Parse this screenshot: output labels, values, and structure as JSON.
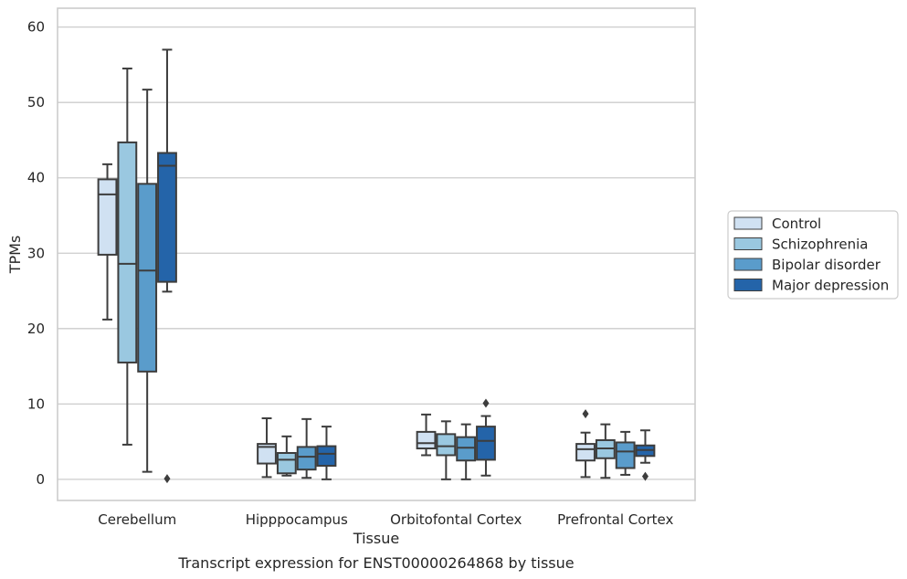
{
  "chart_data": {
    "type": "box",
    "caption": "Transcript expression for ENST00000264868 by tissue",
    "xlabel": "Tissue",
    "ylabel": "TPMs",
    "ylim": [
      -2.8,
      62.5
    ],
    "yticks": [
      0,
      10,
      20,
      30,
      40,
      50,
      60
    ],
    "grid": "horizontal",
    "legend_position": "right",
    "categories": [
      "Cerebellum",
      "Hipppocampus",
      "Orbitofontal Cortex",
      "Prefrontal Cortex"
    ],
    "series": [
      {
        "name": "Control",
        "color": "#d0e1f2",
        "boxes": [
          {
            "whisker_low": 21.2,
            "q1": 29.8,
            "median": 37.8,
            "q3": 39.8,
            "whisker_high": 41.8,
            "outliers": []
          },
          {
            "whisker_low": 0.3,
            "q1": 2.1,
            "median": 4.3,
            "q3": 4.7,
            "whisker_high": 8.1,
            "outliers": []
          },
          {
            "whisker_low": 3.2,
            "q1": 4.1,
            "median": 4.8,
            "q3": 6.3,
            "whisker_high": 8.6,
            "outliers": []
          },
          {
            "whisker_low": 0.3,
            "q1": 2.5,
            "median": 4.0,
            "q3": 4.7,
            "whisker_high": 6.2,
            "outliers": [
              8.7
            ]
          }
        ]
      },
      {
        "name": "Schizophrenia",
        "color": "#9ac8e0",
        "boxes": [
          {
            "whisker_low": 4.6,
            "q1": 15.5,
            "median": 28.6,
            "q3": 44.7,
            "whisker_high": 54.5,
            "outliers": []
          },
          {
            "whisker_low": 0.5,
            "q1": 0.8,
            "median": 2.6,
            "q3": 3.5,
            "whisker_high": 5.7,
            "outliers": []
          },
          {
            "whisker_low": 0.0,
            "q1": 3.2,
            "median": 4.4,
            "q3": 6.0,
            "whisker_high": 7.7,
            "outliers": []
          },
          {
            "whisker_low": 0.2,
            "q1": 2.8,
            "median": 4.1,
            "q3": 5.2,
            "whisker_high": 7.3,
            "outliers": []
          }
        ]
      },
      {
        "name": "Bipolar disorder",
        "color": "#5a9ccb",
        "boxes": [
          {
            "whisker_low": 1.0,
            "q1": 14.3,
            "median": 27.7,
            "q3": 39.2,
            "whisker_high": 51.7,
            "outliers": []
          },
          {
            "whisker_low": 0.2,
            "q1": 1.3,
            "median": 3.0,
            "q3": 4.3,
            "whisker_high": 8.0,
            "outliers": []
          },
          {
            "whisker_low": 0.0,
            "q1": 2.5,
            "median": 4.2,
            "q3": 5.6,
            "whisker_high": 7.3,
            "outliers": []
          },
          {
            "whisker_low": 0.6,
            "q1": 1.5,
            "median": 3.7,
            "q3": 4.9,
            "whisker_high": 6.3,
            "outliers": []
          }
        ]
      },
      {
        "name": "Major depression",
        "color": "#2464a9",
        "boxes": [
          {
            "whisker_low": 24.9,
            "q1": 26.2,
            "median": 41.6,
            "q3": 43.3,
            "whisker_high": 57.0,
            "outliers": [
              0.1
            ]
          },
          {
            "whisker_low": 0.0,
            "q1": 1.8,
            "median": 3.4,
            "q3": 4.4,
            "whisker_high": 7.0,
            "outliers": []
          },
          {
            "whisker_low": 0.5,
            "q1": 2.6,
            "median": 5.1,
            "q3": 7.0,
            "whisker_high": 8.4,
            "outliers": [
              10.1
            ]
          },
          {
            "whisker_low": 2.2,
            "q1": 3.1,
            "median": 3.9,
            "q3": 4.5,
            "whisker_high": 6.5,
            "outliers": [
              0.4
            ]
          }
        ]
      }
    ]
  }
}
